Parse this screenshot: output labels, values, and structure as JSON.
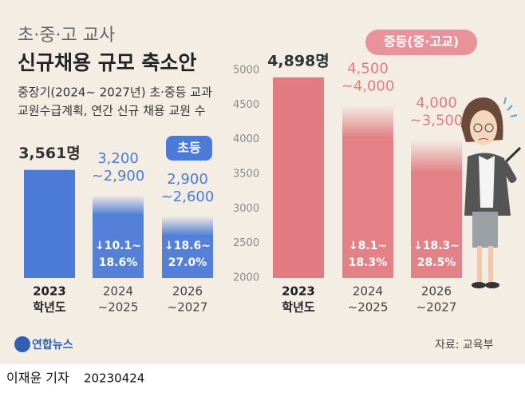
{
  "header": {
    "title_top": "초·중·고 교사",
    "title": "신규채용 규모 축소안",
    "subtitle": [
      "중장기(2024~ 2027년) 초·중등 교과",
      "교원수급계획, 연간 신규 채용 교원 수"
    ]
  },
  "chart_data": [
    {
      "type": "bar",
      "label": "초등",
      "color": "#4b7bd6",
      "ylim": [
        2000,
        5000
      ],
      "bars": [
        {
          "category": [
            "2023",
            "학년도"
          ],
          "value": 3561,
          "value_label": "3,561명"
        },
        {
          "category": [
            "2024",
            "~2025"
          ],
          "high": 3200,
          "low": 2900,
          "high_label": "3,200",
          "low_label": "~2,900",
          "change": [
            "↓10.1~",
            "18.6%"
          ]
        },
        {
          "category": [
            "2026",
            "~2027"
          ],
          "high": 2900,
          "low": 2600,
          "high_label": "2,900",
          "low_label": "~2,600",
          "change": [
            "↓18.6~",
            "27.0%"
          ]
        }
      ]
    },
    {
      "type": "bar",
      "label": "중등(중·고교)",
      "color": "#e27b82",
      "ylim": [
        2000,
        5000
      ],
      "yticks": [
        2000,
        2500,
        3000,
        3500,
        4000,
        4500,
        5000
      ],
      "bars": [
        {
          "category": [
            "2023",
            "학년도"
          ],
          "value": 4898,
          "value_label": "4,898명"
        },
        {
          "category": [
            "2024",
            "~2025"
          ],
          "high": 4500,
          "low": 4000,
          "high_label": "4,500",
          "low_label": "~4,000",
          "change": [
            "↓8.1~",
            "18.3%"
          ]
        },
        {
          "category": [
            "2026",
            "~2027"
          ],
          "high": 4000,
          "low": 3500,
          "high_label": "4,000",
          "low_label": "~3,500",
          "change": [
            "↓18.3~",
            "28.5%"
          ]
        }
      ]
    }
  ],
  "footer": {
    "logo": "연합뉴스",
    "source": "자료: 교육부",
    "byline": "이재윤 기자",
    "date": "20230424"
  }
}
